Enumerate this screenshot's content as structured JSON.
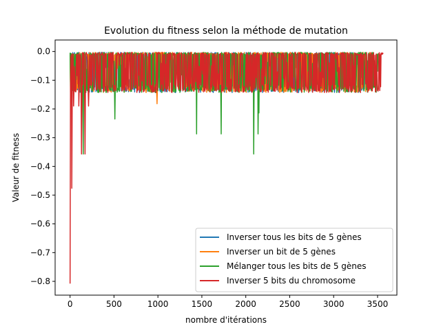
{
  "chart_data": {
    "type": "line",
    "title": "Evolution du fitness selon la méthode de mutation",
    "xlabel": "nombre d'itérations",
    "ylabel": "Valeur de fitness",
    "xlim": [
      -170,
      3720
    ],
    "ylim": [
      -0.848,
      0.04
    ],
    "xticks": [
      0,
      500,
      1000,
      1500,
      2000,
      2500,
      3000,
      3500
    ],
    "yticks": [
      0.0,
      -0.1,
      -0.2,
      -0.3,
      -0.4,
      -0.5,
      -0.6,
      -0.7,
      -0.8
    ],
    "xtick_labels": [
      "0",
      "500",
      "1000",
      "1500",
      "2000",
      "2500",
      "3000",
      "3500"
    ],
    "ytick_labels": [
      "0.0",
      "−0.1",
      "−0.2",
      "−0.3",
      "−0.4",
      "−0.5",
      "−0.6",
      "−0.7",
      "−0.8"
    ],
    "grid": false,
    "legend_position": "lower right",
    "series": [
      {
        "name": "Inverser tous les bits de 5 gènes",
        "color": "#1f77b4",
        "x_end": 3360,
        "baseline": -0.143,
        "band": [
          -0.143,
          -0.003
        ],
        "spikes": [
          {
            "x": 1200,
            "y": -0.143
          },
          {
            "x": 2600,
            "y": -0.143
          }
        ]
      },
      {
        "name": "Inverser un bit de 5 gènes",
        "color": "#ff7f0e",
        "x_end": 3430,
        "baseline": -0.143,
        "band": [
          -0.143,
          -0.003
        ],
        "spikes": [
          {
            "x": 990,
            "y": -0.182
          }
        ]
      },
      {
        "name": "Mélanger tous les bits de 5 gènes",
        "color": "#2ca02c",
        "x_end": 3500,
        "baseline": -0.143,
        "band": [
          -0.143,
          -0.003
        ],
        "spikes": [
          {
            "x": 150,
            "y": -0.357
          },
          {
            "x": 510,
            "y": -0.235
          },
          {
            "x": 1440,
            "y": -0.287
          },
          {
            "x": 1720,
            "y": -0.287
          },
          {
            "x": 2090,
            "y": -0.357
          },
          {
            "x": 2140,
            "y": -0.287
          },
          {
            "x": 2150,
            "y": -0.214
          }
        ]
      },
      {
        "name": "Inverser 5 bits du chromosome",
        "color": "#d62728",
        "x_end": 3560,
        "baseline": -0.143,
        "band": [
          -0.143,
          -0.003
        ],
        "spikes": [
          {
            "x": 0,
            "y": -0.808
          },
          {
            "x": 20,
            "y": -0.476
          },
          {
            "x": 40,
            "y": -0.19
          },
          {
            "x": 100,
            "y": -0.19
          },
          {
            "x": 130,
            "y": -0.357
          },
          {
            "x": 170,
            "y": -0.357
          },
          {
            "x": 210,
            "y": -0.19
          }
        ]
      }
    ]
  }
}
